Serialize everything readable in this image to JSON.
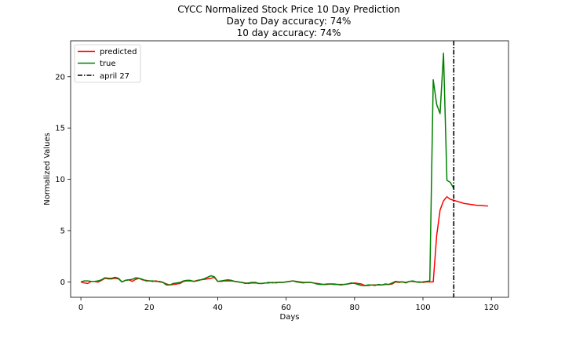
{
  "chart_data": {
    "type": "line",
    "title_lines": [
      "CYCC Normalized Stock Price 10 Day Prediction",
      "Day to Day accuracy: 74%",
      "10 day accuracy: 74%"
    ],
    "xlabel": "Days",
    "ylabel": "Normalized Values",
    "xlim": [
      -3,
      125
    ],
    "ylim": [
      -1.5,
      23.5
    ],
    "x_ticks": [
      0,
      20,
      40,
      60,
      80,
      100,
      120
    ],
    "y_ticks": [
      0,
      5,
      10,
      15,
      20
    ],
    "legend_position": "top-left",
    "series": [
      {
        "name": "predicted",
        "color": "#ff0000",
        "points": [
          [
            0,
            0.0
          ],
          [
            1,
            -0.1
          ],
          [
            2,
            -0.15
          ],
          [
            3,
            0.05
          ],
          [
            4,
            0.05
          ],
          [
            5,
            -0.02
          ],
          [
            6,
            0.15
          ],
          [
            7,
            0.35
          ],
          [
            8,
            0.3
          ],
          [
            9,
            0.3
          ],
          [
            10,
            0.35
          ],
          [
            11,
            0.3
          ],
          [
            12,
            0.0
          ],
          [
            13,
            0.15
          ],
          [
            14,
            0.2
          ],
          [
            15,
            0.05
          ],
          [
            16,
            0.25
          ],
          [
            17,
            0.35
          ],
          [
            18,
            0.2
          ],
          [
            19,
            0.15
          ],
          [
            20,
            0.1
          ],
          [
            21,
            0.05
          ],
          [
            22,
            0.1
          ],
          [
            23,
            0.0
          ],
          [
            24,
            -0.05
          ],
          [
            25,
            -0.2
          ],
          [
            26,
            -0.3
          ],
          [
            27,
            -0.25
          ],
          [
            28,
            -0.2
          ],
          [
            29,
            -0.15
          ],
          [
            30,
            0.05
          ],
          [
            31,
            0.1
          ],
          [
            32,
            0.1
          ],
          [
            33,
            0.05
          ],
          [
            34,
            0.15
          ],
          [
            35,
            0.2
          ],
          [
            36,
            0.25
          ],
          [
            37,
            0.3
          ],
          [
            38,
            0.35
          ],
          [
            39,
            0.45
          ],
          [
            40,
            0.05
          ],
          [
            41,
            0.05
          ],
          [
            42,
            0.1
          ],
          [
            43,
            0.1
          ],
          [
            44,
            0.1
          ],
          [
            45,
            0.05
          ],
          [
            46,
            0.0
          ],
          [
            47,
            -0.05
          ],
          [
            48,
            -0.1
          ],
          [
            49,
            -0.15
          ],
          [
            50,
            -0.1
          ],
          [
            51,
            -0.1
          ],
          [
            52,
            -0.15
          ],
          [
            53,
            -0.15
          ],
          [
            54,
            -0.1
          ],
          [
            55,
            -0.1
          ],
          [
            56,
            -0.05
          ],
          [
            57,
            -0.1
          ],
          [
            58,
            -0.05
          ],
          [
            59,
            -0.05
          ],
          [
            60,
            0.0
          ],
          [
            61,
            0.05
          ],
          [
            62,
            0.1
          ],
          [
            63,
            0.05
          ],
          [
            64,
            0.0
          ],
          [
            65,
            -0.05
          ],
          [
            66,
            -0.05
          ],
          [
            67,
            -0.05
          ],
          [
            68,
            -0.1
          ],
          [
            69,
            -0.15
          ],
          [
            70,
            -0.2
          ],
          [
            71,
            -0.25
          ],
          [
            72,
            -0.25
          ],
          [
            73,
            -0.2
          ],
          [
            74,
            -0.2
          ],
          [
            75,
            -0.25
          ],
          [
            76,
            -0.25
          ],
          [
            77,
            -0.25
          ],
          [
            78,
            -0.2
          ],
          [
            79,
            -0.15
          ],
          [
            80,
            -0.1
          ],
          [
            81,
            -0.15
          ],
          [
            82,
            -0.2
          ],
          [
            83,
            -0.35
          ],
          [
            84,
            -0.35
          ],
          [
            85,
            -0.3
          ],
          [
            86,
            -0.3
          ],
          [
            87,
            -0.3
          ],
          [
            88,
            -0.3
          ],
          [
            89,
            -0.25
          ],
          [
            90,
            -0.25
          ],
          [
            91,
            -0.2
          ],
          [
            92,
            0.0
          ],
          [
            93,
            -0.05
          ],
          [
            94,
            0.0
          ],
          [
            95,
            -0.05
          ],
          [
            96,
            0.05
          ],
          [
            97,
            0.05
          ],
          [
            98,
            0.0
          ],
          [
            99,
            0.0
          ],
          [
            100,
            -0.05
          ],
          [
            101,
            0.0
          ],
          [
            102,
            0.0
          ],
          [
            103,
            0.0
          ],
          [
            104,
            4.5
          ],
          [
            105,
            7.0
          ],
          [
            106,
            7.9
          ],
          [
            107,
            8.3
          ],
          [
            108,
            8.05
          ],
          [
            109,
            7.95
          ],
          [
            110,
            7.85
          ],
          [
            111,
            7.75
          ],
          [
            112,
            7.65
          ],
          [
            113,
            7.6
          ],
          [
            114,
            7.55
          ],
          [
            115,
            7.5
          ],
          [
            116,
            7.45
          ],
          [
            117,
            7.45
          ],
          [
            118,
            7.42
          ],
          [
            119,
            7.4
          ]
        ]
      },
      {
        "name": "true",
        "color": "#008000",
        "points": [
          [
            0,
            0.0
          ],
          [
            1,
            0.1
          ],
          [
            2,
            0.1
          ],
          [
            3,
            0.05
          ],
          [
            4,
            0.05
          ],
          [
            5,
            0.1
          ],
          [
            6,
            0.2
          ],
          [
            7,
            0.4
          ],
          [
            8,
            0.35
          ],
          [
            9,
            0.35
          ],
          [
            10,
            0.45
          ],
          [
            11,
            0.35
          ],
          [
            12,
            0.0
          ],
          [
            13,
            0.15
          ],
          [
            14,
            0.2
          ],
          [
            15,
            0.25
          ],
          [
            16,
            0.4
          ],
          [
            17,
            0.35
          ],
          [
            18,
            0.25
          ],
          [
            19,
            0.1
          ],
          [
            20,
            0.1
          ],
          [
            21,
            0.1
          ],
          [
            22,
            0.05
          ],
          [
            23,
            0.05
          ],
          [
            24,
            -0.05
          ],
          [
            25,
            -0.3
          ],
          [
            26,
            -0.3
          ],
          [
            27,
            -0.15
          ],
          [
            28,
            -0.1
          ],
          [
            29,
            -0.05
          ],
          [
            30,
            0.1
          ],
          [
            31,
            0.15
          ],
          [
            32,
            0.15
          ],
          [
            33,
            0.05
          ],
          [
            34,
            0.1
          ],
          [
            35,
            0.2
          ],
          [
            36,
            0.3
          ],
          [
            37,
            0.45
          ],
          [
            38,
            0.6
          ],
          [
            39,
            0.5
          ],
          [
            40,
            0.05
          ],
          [
            41,
            0.1
          ],
          [
            42,
            0.15
          ],
          [
            43,
            0.2
          ],
          [
            44,
            0.15
          ],
          [
            45,
            0.05
          ],
          [
            46,
            0.0
          ],
          [
            47,
            -0.05
          ],
          [
            48,
            -0.15
          ],
          [
            49,
            -0.1
          ],
          [
            50,
            -0.05
          ],
          [
            51,
            -0.05
          ],
          [
            52,
            -0.15
          ],
          [
            53,
            -0.15
          ],
          [
            54,
            -0.1
          ],
          [
            55,
            -0.05
          ],
          [
            56,
            -0.1
          ],
          [
            57,
            -0.05
          ],
          [
            58,
            -0.05
          ],
          [
            59,
            -0.05
          ],
          [
            60,
            0.0
          ],
          [
            61,
            0.05
          ],
          [
            62,
            0.1
          ],
          [
            63,
            0.0
          ],
          [
            64,
            -0.05
          ],
          [
            65,
            -0.1
          ],
          [
            66,
            -0.05
          ],
          [
            67,
            -0.05
          ],
          [
            68,
            -0.1
          ],
          [
            69,
            -0.2
          ],
          [
            70,
            -0.25
          ],
          [
            71,
            -0.25
          ],
          [
            72,
            -0.2
          ],
          [
            73,
            -0.2
          ],
          [
            74,
            -0.25
          ],
          [
            75,
            -0.25
          ],
          [
            76,
            -0.3
          ],
          [
            77,
            -0.25
          ],
          [
            78,
            -0.2
          ],
          [
            79,
            -0.1
          ],
          [
            80,
            -0.15
          ],
          [
            81,
            -0.25
          ],
          [
            82,
            -0.35
          ],
          [
            83,
            -0.35
          ],
          [
            84,
            -0.3
          ],
          [
            85,
            -0.3
          ],
          [
            86,
            -0.35
          ],
          [
            87,
            -0.25
          ],
          [
            88,
            -0.3
          ],
          [
            89,
            -0.2
          ],
          [
            90,
            -0.25
          ],
          [
            91,
            -0.1
          ],
          [
            92,
            0.05
          ],
          [
            93,
            0.0
          ],
          [
            94,
            0.0
          ],
          [
            95,
            -0.1
          ],
          [
            96,
            0.05
          ],
          [
            97,
            0.1
          ],
          [
            98,
            0.0
          ],
          [
            99,
            -0.05
          ],
          [
            100,
            0.0
          ],
          [
            101,
            0.05
          ],
          [
            102,
            0.1
          ],
          [
            103,
            19.7
          ],
          [
            104,
            17.3
          ],
          [
            105,
            16.4
          ],
          [
            106,
            22.3
          ],
          [
            107,
            9.9
          ],
          [
            108,
            9.7
          ],
          [
            109,
            9.1
          ]
        ]
      }
    ],
    "vline": {
      "name": "april 27",
      "x": 109,
      "color": "#000000",
      "style": "dash-dot"
    }
  }
}
